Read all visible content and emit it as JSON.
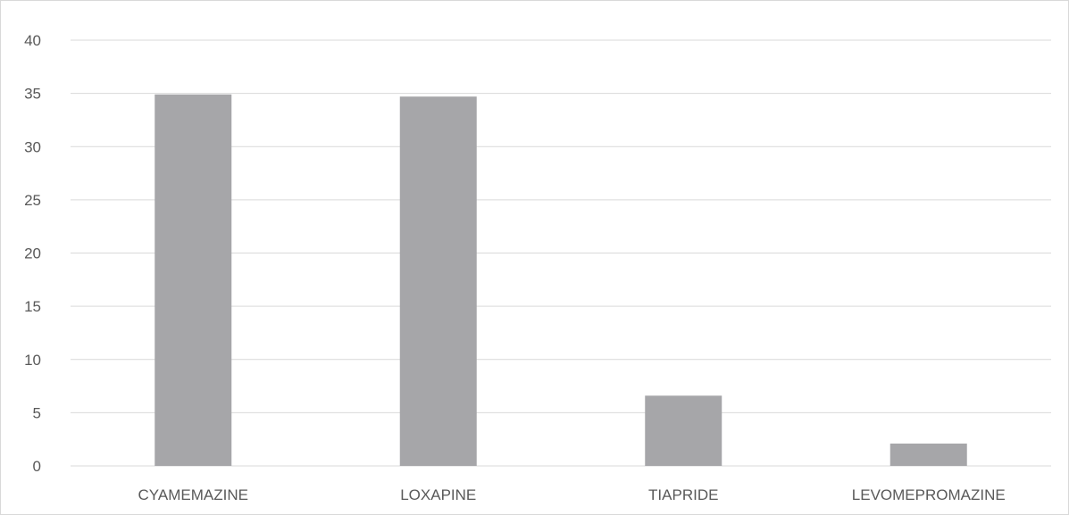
{
  "chart_data": {
    "type": "bar",
    "title": "",
    "xlabel": "",
    "ylabel": "",
    "categories": [
      "CYAMEMAZINE",
      "LOXAPINE",
      "TIAPRIDE",
      "LEVOMEPROMAZINE"
    ],
    "values": [
      34.9,
      34.7,
      6.6,
      2.1
    ],
    "ylim": [
      0,
      40
    ],
    "yticks": [
      "0",
      "5",
      "10",
      "15",
      "20",
      "25",
      "30",
      "35",
      "40"
    ],
    "grid": true,
    "legend": "none",
    "bar_color": "#a6a6a9",
    "grid_color": "#d9d9d9",
    "text_color": "#595959"
  }
}
